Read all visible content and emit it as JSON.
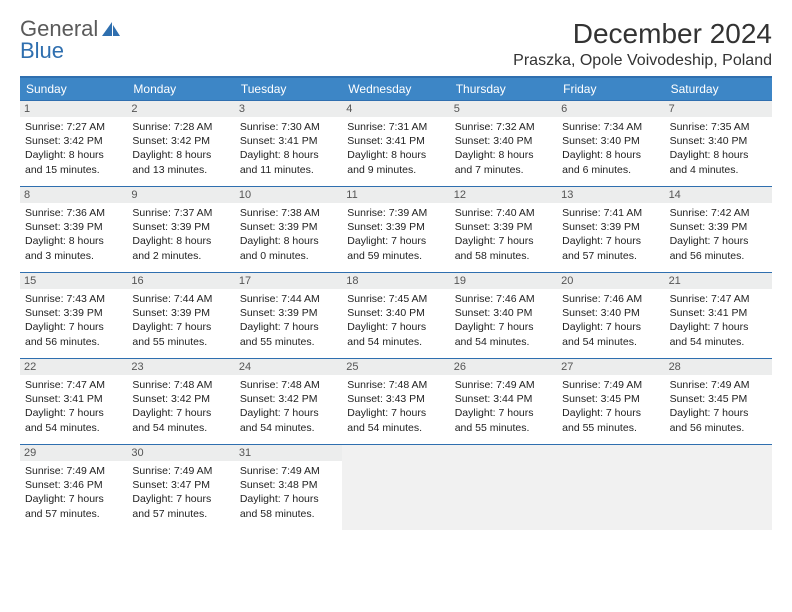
{
  "logo": {
    "line1": "General",
    "line2": "Blue",
    "line1_color": "#5a5a5a",
    "line2_color": "#2f6faf"
  },
  "title": "December 2024",
  "location": "Praszka, Opole Voivodeship, Poland",
  "colors": {
    "header_bg": "#3d86c6",
    "border": "#2f6faf",
    "daynum_bg": "#eceded",
    "blank_bg": "#f1f1f1"
  },
  "day_headers": [
    "Sunday",
    "Monday",
    "Tuesday",
    "Wednesday",
    "Thursday",
    "Friday",
    "Saturday"
  ],
  "weeks": [
    [
      {
        "n": "1",
        "sr": "7:27 AM",
        "ss": "3:42 PM",
        "dl": "8 hours and 15 minutes."
      },
      {
        "n": "2",
        "sr": "7:28 AM",
        "ss": "3:42 PM",
        "dl": "8 hours and 13 minutes."
      },
      {
        "n": "3",
        "sr": "7:30 AM",
        "ss": "3:41 PM",
        "dl": "8 hours and 11 minutes."
      },
      {
        "n": "4",
        "sr": "7:31 AM",
        "ss": "3:41 PM",
        "dl": "8 hours and 9 minutes."
      },
      {
        "n": "5",
        "sr": "7:32 AM",
        "ss": "3:40 PM",
        "dl": "8 hours and 7 minutes."
      },
      {
        "n": "6",
        "sr": "7:34 AM",
        "ss": "3:40 PM",
        "dl": "8 hours and 6 minutes."
      },
      {
        "n": "7",
        "sr": "7:35 AM",
        "ss": "3:40 PM",
        "dl": "8 hours and 4 minutes."
      }
    ],
    [
      {
        "n": "8",
        "sr": "7:36 AM",
        "ss": "3:39 PM",
        "dl": "8 hours and 3 minutes."
      },
      {
        "n": "9",
        "sr": "7:37 AM",
        "ss": "3:39 PM",
        "dl": "8 hours and 2 minutes."
      },
      {
        "n": "10",
        "sr": "7:38 AM",
        "ss": "3:39 PM",
        "dl": "8 hours and 0 minutes."
      },
      {
        "n": "11",
        "sr": "7:39 AM",
        "ss": "3:39 PM",
        "dl": "7 hours and 59 minutes."
      },
      {
        "n": "12",
        "sr": "7:40 AM",
        "ss": "3:39 PM",
        "dl": "7 hours and 58 minutes."
      },
      {
        "n": "13",
        "sr": "7:41 AM",
        "ss": "3:39 PM",
        "dl": "7 hours and 57 minutes."
      },
      {
        "n": "14",
        "sr": "7:42 AM",
        "ss": "3:39 PM",
        "dl": "7 hours and 56 minutes."
      }
    ],
    [
      {
        "n": "15",
        "sr": "7:43 AM",
        "ss": "3:39 PM",
        "dl": "7 hours and 56 minutes."
      },
      {
        "n": "16",
        "sr": "7:44 AM",
        "ss": "3:39 PM",
        "dl": "7 hours and 55 minutes."
      },
      {
        "n": "17",
        "sr": "7:44 AM",
        "ss": "3:39 PM",
        "dl": "7 hours and 55 minutes."
      },
      {
        "n": "18",
        "sr": "7:45 AM",
        "ss": "3:40 PM",
        "dl": "7 hours and 54 minutes."
      },
      {
        "n": "19",
        "sr": "7:46 AM",
        "ss": "3:40 PM",
        "dl": "7 hours and 54 minutes."
      },
      {
        "n": "20",
        "sr": "7:46 AM",
        "ss": "3:40 PM",
        "dl": "7 hours and 54 minutes."
      },
      {
        "n": "21",
        "sr": "7:47 AM",
        "ss": "3:41 PM",
        "dl": "7 hours and 54 minutes."
      }
    ],
    [
      {
        "n": "22",
        "sr": "7:47 AM",
        "ss": "3:41 PM",
        "dl": "7 hours and 54 minutes."
      },
      {
        "n": "23",
        "sr": "7:48 AM",
        "ss": "3:42 PM",
        "dl": "7 hours and 54 minutes."
      },
      {
        "n": "24",
        "sr": "7:48 AM",
        "ss": "3:42 PM",
        "dl": "7 hours and 54 minutes."
      },
      {
        "n": "25",
        "sr": "7:48 AM",
        "ss": "3:43 PM",
        "dl": "7 hours and 54 minutes."
      },
      {
        "n": "26",
        "sr": "7:49 AM",
        "ss": "3:44 PM",
        "dl": "7 hours and 55 minutes."
      },
      {
        "n": "27",
        "sr": "7:49 AM",
        "ss": "3:45 PM",
        "dl": "7 hours and 55 minutes."
      },
      {
        "n": "28",
        "sr": "7:49 AM",
        "ss": "3:45 PM",
        "dl": "7 hours and 56 minutes."
      }
    ],
    [
      {
        "n": "29",
        "sr": "7:49 AM",
        "ss": "3:46 PM",
        "dl": "7 hours and 57 minutes."
      },
      {
        "n": "30",
        "sr": "7:49 AM",
        "ss": "3:47 PM",
        "dl": "7 hours and 57 minutes."
      },
      {
        "n": "31",
        "sr": "7:49 AM",
        "ss": "3:48 PM",
        "dl": "7 hours and 58 minutes."
      },
      null,
      null,
      null,
      null
    ]
  ],
  "labels": {
    "sunrise": "Sunrise: ",
    "sunset": "Sunset: ",
    "daylight": "Daylight: "
  }
}
